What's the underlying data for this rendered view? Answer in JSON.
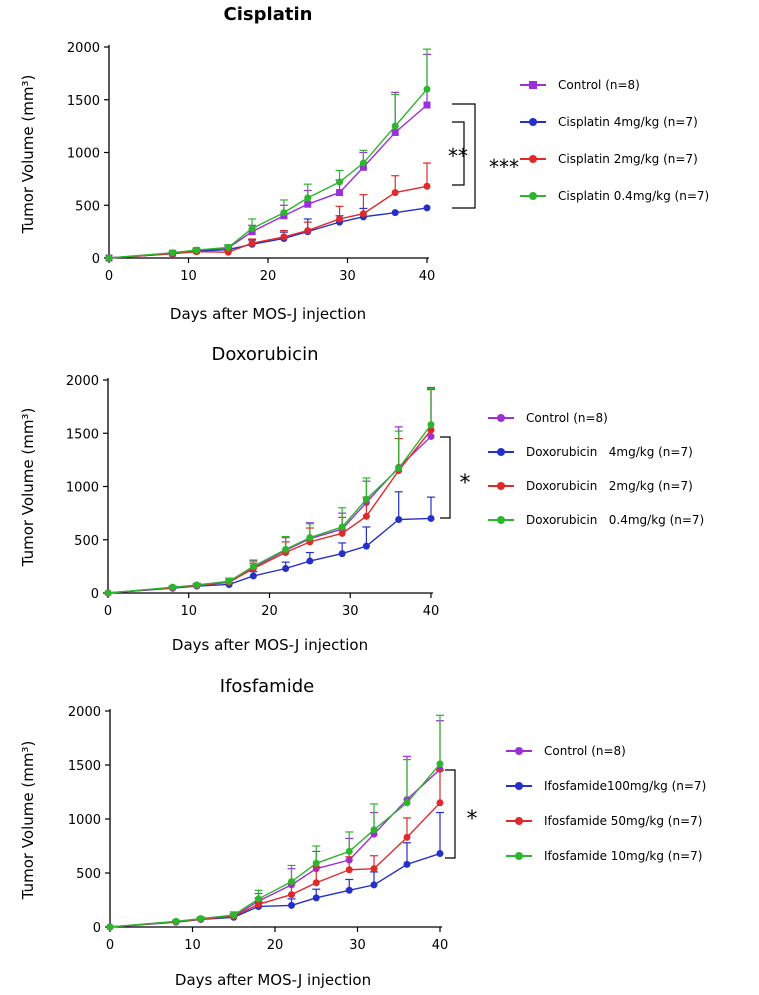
{
  "chart_data": [
    {
      "type": "line",
      "title": "Cisplatin",
      "ylabel": "Tumor Volume (mm³)",
      "xlabel": "Days after MOS-J injection",
      "ylim": [
        0,
        2000
      ],
      "xlim": [
        0,
        40
      ],
      "yticks": [
        "0",
        "500",
        "1000",
        "1500",
        "2000"
      ],
      "xticks": [
        "0",
        "10",
        "20",
        "30",
        "40"
      ],
      "x": [
        0,
        8,
        11,
        15,
        18,
        22,
        25,
        29,
        32,
        36,
        40
      ],
      "series": [
        {
          "name": "Control (n=8)",
          "color": "#9b30d9",
          "marker": "square",
          "values": [
            0,
            45,
            70,
            95,
            250,
            400,
            510,
            620,
            860,
            1190,
            1450
          ],
          "errors": [
            0,
            12,
            15,
            25,
            60,
            100,
            130,
            120,
            140,
            380,
            480
          ]
        },
        {
          "name": "Cisplatin 4mg/kg (n=7)",
          "color": "#2430c8",
          "marker": "circle",
          "values": [
            0,
            40,
            65,
            80,
            130,
            185,
            250,
            340,
            390,
            430,
            475
          ],
          "errors": [
            0,
            10,
            12,
            20,
            40,
            60,
            120,
            60,
            80,
            0,
            0
          ]
        },
        {
          "name": "Cisplatin 2mg/kg (n=7)",
          "color": "#e02a2a",
          "marker": "circle",
          "values": [
            0,
            42,
            60,
            55,
            140,
            200,
            260,
            370,
            420,
            620,
            680
          ],
          "errors": [
            0,
            10,
            12,
            15,
            40,
            60,
            80,
            120,
            180,
            160,
            220
          ]
        },
        {
          "name": "Cisplatin 0.4mg/kg (n=7)",
          "color": "#2db52d",
          "marker": "circle",
          "values": [
            0,
            50,
            75,
            100,
            280,
            430,
            570,
            720,
            900,
            1250,
            1600
          ],
          "errors": [
            0,
            12,
            18,
            25,
            90,
            120,
            130,
            110,
            120,
            300,
            380
          ]
        }
      ],
      "annotations": [
        "**",
        "***"
      ]
    },
    {
      "type": "line",
      "title": "Doxorubicin",
      "ylabel": "Tumor Volume (mm³)",
      "xlabel": "Days after MOS-J injection",
      "ylim": [
        0,
        2000
      ],
      "xlim": [
        0,
        40
      ],
      "yticks": [
        "0",
        "500",
        "1000",
        "1500",
        "2000"
      ],
      "xticks": [
        "0",
        "10",
        "20",
        "30",
        "40"
      ],
      "x": [
        0,
        8,
        11,
        15,
        18,
        22,
        25,
        29,
        32,
        36,
        40
      ],
      "series": [
        {
          "name": "Control (n=8)",
          "color": "#9b30d9",
          "marker": "circle",
          "values": [
            0,
            50,
            75,
            110,
            240,
            400,
            510,
            600,
            850,
            1180,
            1470
          ],
          "errors": [
            0,
            12,
            15,
            30,
            60,
            120,
            150,
            150,
            200,
            380,
            460
          ]
        },
        {
          "name": "Doxorubicin   4mg/kg (n=7)",
          "color": "#2430c8",
          "marker": "circle",
          "values": [
            0,
            45,
            65,
            80,
            160,
            230,
            300,
            370,
            440,
            690,
            700
          ],
          "errors": [
            0,
            10,
            12,
            15,
            40,
            60,
            80,
            100,
            180,
            260,
            200
          ]
        },
        {
          "name": "Doxorubicin   2mg/kg (n=7)",
          "color": "#e02a2a",
          "marker": "circle",
          "values": [
            0,
            50,
            70,
            100,
            230,
            380,
            480,
            560,
            720,
            1150,
            1530
          ],
          "errors": [
            0,
            12,
            15,
            25,
            50,
            100,
            130,
            150,
            180,
            300,
            380
          ]
        },
        {
          "name": "Doxorubicin   0.4mg/kg (n=7)",
          "color": "#2db52d",
          "marker": "circle",
          "values": [
            0,
            55,
            75,
            110,
            250,
            410,
            520,
            620,
            880,
            1170,
            1580
          ],
          "errors": [
            0,
            12,
            15,
            30,
            60,
            120,
            130,
            180,
            200,
            350,
            340
          ]
        }
      ],
      "annotations": [
        "*"
      ]
    },
    {
      "type": "line",
      "title": "Ifosfamide",
      "ylabel": "Tumor Volume (mm³)",
      "xlabel": "Days after MOS-J injection",
      "ylim": [
        0,
        2000
      ],
      "xlim": [
        0,
        40
      ],
      "yticks": [
        "0",
        "500",
        "1000",
        "1500",
        "2000"
      ],
      "xticks": [
        "0",
        "10",
        "20",
        "30",
        "40"
      ],
      "x": [
        0,
        8,
        11,
        15,
        18,
        22,
        25,
        29,
        32,
        36,
        40
      ],
      "series": [
        {
          "name": "Control (n=8)",
          "color": "#9b30d9",
          "marker": "circle",
          "values": [
            0,
            50,
            75,
            100,
            240,
            390,
            540,
            620,
            860,
            1180,
            1460
          ],
          "errors": [
            0,
            12,
            15,
            25,
            70,
            150,
            160,
            200,
            200,
            400,
            450
          ]
        },
        {
          "name": "Ifosfamide100mg/kg (n=7)",
          "color": "#2430c8",
          "marker": "circle",
          "values": [
            0,
            45,
            70,
            90,
            190,
            200,
            270,
            340,
            390,
            580,
            680
          ],
          "errors": [
            0,
            10,
            12,
            15,
            40,
            60,
            80,
            100,
            120,
            200,
            380
          ]
        },
        {
          "name": "Ifosfamide 50mg/kg (n=7)",
          "color": "#e02a2a",
          "marker": "circle",
          "values": [
            0,
            48,
            72,
            100,
            210,
            300,
            410,
            530,
            540,
            830,
            1150
          ],
          "errors": [
            0,
            12,
            15,
            20,
            60,
            100,
            150,
            120,
            120,
            180,
            300
          ]
        },
        {
          "name": "Ifosfamide 10mg/kg (n=7)",
          "color": "#2db52d",
          "marker": "circle",
          "values": [
            0,
            52,
            78,
            110,
            260,
            420,
            590,
            700,
            900,
            1150,
            1510
          ],
          "errors": [
            0,
            12,
            15,
            30,
            80,
            150,
            160,
            180,
            240,
            400,
            450
          ]
        }
      ],
      "annotations": [
        "*"
      ]
    }
  ]
}
